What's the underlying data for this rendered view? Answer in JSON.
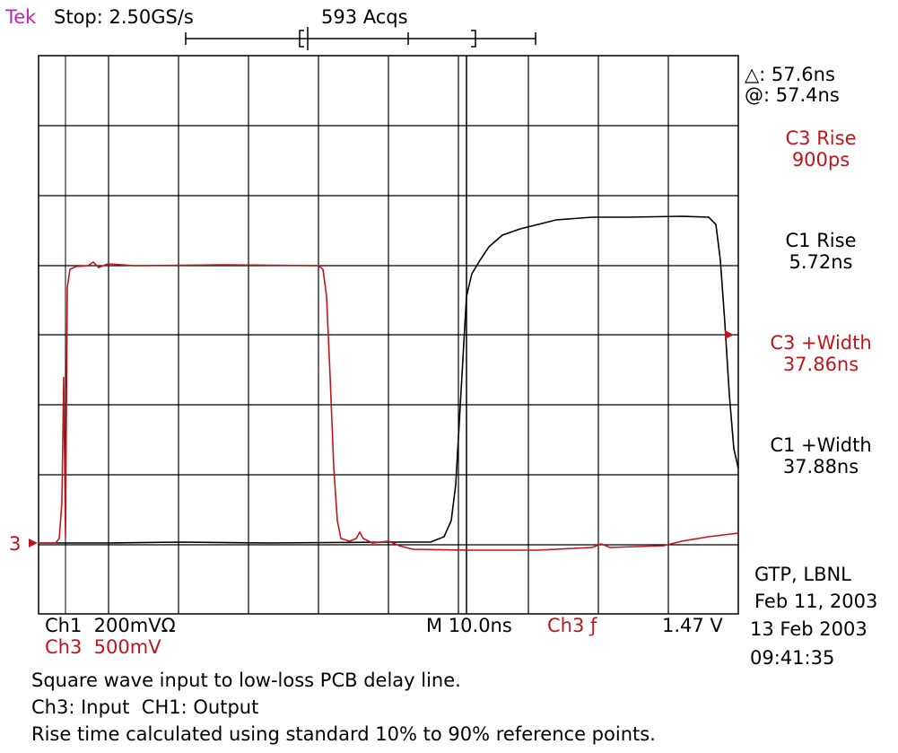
{
  "header": {
    "brand": "Tek",
    "status": "Stop: 2.50GS/s",
    "acquisitions": "593 Acqs"
  },
  "cursor": {
    "delta": "△: 57.6ns",
    "at": "@: 57.4ns"
  },
  "measurements": [
    {
      "label": "C3 Rise",
      "value": "900ps"
    },
    {
      "label": "C1 Rise",
      "value": "5.72ns"
    },
    {
      "label": "C3 +Width",
      "value": "37.86ns"
    },
    {
      "label": "C1 +Width",
      "value": "37.88ns"
    }
  ],
  "markers": {
    "ch3": "3"
  },
  "settings": {
    "ch1": "Ch1  200mVΩ",
    "ch3": "Ch3  500mV",
    "timebase": "M 10.0ns",
    "trigger_source": "Ch3 ƒ",
    "trigger_level": "1.47 V"
  },
  "info": {
    "org": "GTP, LBNL",
    "date_note": "Feb 11, 2003",
    "date": "13 Feb 2003",
    "time": "09:41:35"
  },
  "caption": [
    "Square wave input to low-loss PCB delay line.",
    "Ch3: Input  CH1: Output",
    "Rise time calculated using standard 10% to 90% reference points."
  ]
}
